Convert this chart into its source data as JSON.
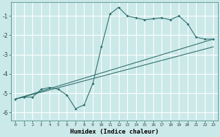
{
  "xlabel": "Humidex (Indice chaleur)",
  "ylabel": "",
  "bg_color": "#cce9e9",
  "grid_color": "#ffffff",
  "line_color": "#2d6e6e",
  "xlim": [
    -0.5,
    23.5
  ],
  "ylim": [
    -6.4,
    -0.3
  ],
  "yticks": [
    -6,
    -5,
    -4,
    -3,
    -2,
    -1
  ],
  "xticks": [
    0,
    1,
    2,
    3,
    4,
    5,
    6,
    7,
    8,
    9,
    10,
    11,
    12,
    13,
    14,
    15,
    16,
    17,
    18,
    19,
    20,
    21,
    22,
    23
  ],
  "line1_x": [
    0,
    1,
    2,
    3,
    4,
    5,
    6,
    7,
    8,
    9,
    10,
    11,
    12,
    13,
    14,
    15,
    16,
    17,
    18,
    19,
    20,
    21,
    22,
    23
  ],
  "line1_y": [
    -5.3,
    -5.2,
    -5.2,
    -4.8,
    -4.7,
    -4.8,
    -5.1,
    -5.8,
    -5.6,
    -4.5,
    -2.6,
    -0.9,
    -0.55,
    -1.0,
    -1.1,
    -1.2,
    -1.15,
    -1.1,
    -1.2,
    -1.0,
    -1.4,
    -2.1,
    -2.2,
    -2.2
  ],
  "line2_x": [
    0,
    23
  ],
  "line2_y": [
    -5.3,
    -2.2
  ],
  "line3_x": [
    0,
    23
  ],
  "line3_y": [
    -5.3,
    -2.6
  ],
  "xtick_fontsize": 4.5,
  "ytick_fontsize": 6,
  "xlabel_fontsize": 6.5
}
